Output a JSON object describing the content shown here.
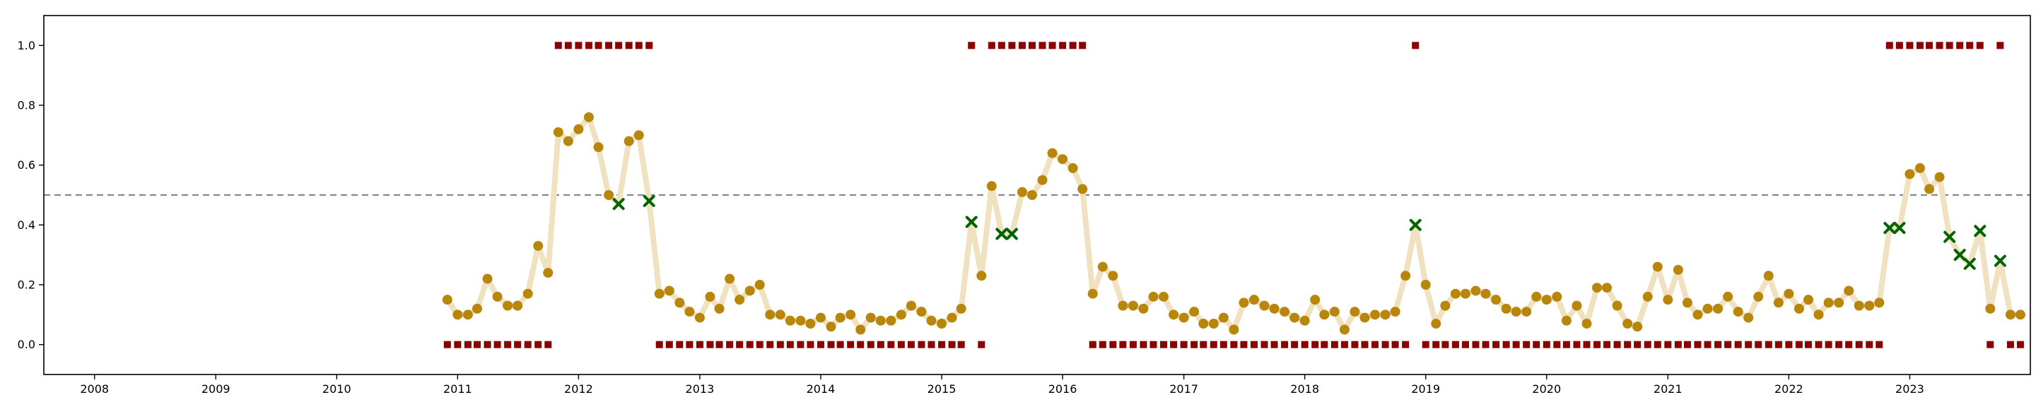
{
  "chart_data": {
    "type": "scatter",
    "title": "",
    "xlabel": "",
    "ylabel": "",
    "x_axis": {
      "type": "date",
      "range": [
        "2007-08-01",
        "2023-12-31"
      ],
      "tick_labels": [
        "2008",
        "2009",
        "2010",
        "2011",
        "2012",
        "2013",
        "2014",
        "2015",
        "2016",
        "2017",
        "2018",
        "2019",
        "2020",
        "2021",
        "2022",
        "2023"
      ]
    },
    "y_axis": {
      "range": [
        -0.1,
        1.1
      ],
      "ticks": [
        0.0,
        0.2,
        0.4,
        0.6,
        0.8,
        1.0
      ],
      "tick_labels": [
        "0.0",
        "0.2",
        "0.4",
        "0.6",
        "0.8",
        "1.0"
      ]
    },
    "grid": false,
    "legend": "none",
    "threshold": {
      "y": 0.5,
      "style": "dashed",
      "color": "#888888"
    },
    "colors": {
      "line": "#f0e2c0",
      "point": "#b8860b",
      "cross": "#006400",
      "label_marker": "#8b0000"
    },
    "series": [
      {
        "role": "probability",
        "start_month": "2010-12",
        "values": [
          0.15,
          0.1,
          0.1,
          0.12,
          0.22,
          0.16,
          0.13,
          0.13,
          0.17,
          0.33,
          0.24,
          0.71,
          0.68,
          0.72,
          0.76,
          0.66,
          0.5,
          0.47,
          0.68,
          0.7,
          0.48,
          0.17,
          0.18,
          0.14,
          0.11,
          0.09,
          0.16,
          0.12,
          0.22,
          0.15,
          0.18,
          0.2,
          0.1,
          0.1,
          0.08,
          0.08,
          0.07,
          0.09,
          0.06,
          0.09,
          0.1,
          0.05,
          0.09,
          0.08,
          0.08,
          0.1,
          0.13,
          0.11,
          0.08,
          0.07,
          0.09,
          0.12,
          0.41,
          0.23,
          0.53,
          0.37,
          0.37,
          0.51,
          0.5,
          0.55,
          0.64,
          0.62,
          0.59,
          0.52,
          0.17,
          0.26,
          0.23,
          0.13,
          0.13,
          0.12,
          0.16,
          0.16,
          0.1,
          0.09,
          0.11,
          0.07,
          0.07,
          0.09,
          0.05,
          0.14,
          0.15,
          0.13,
          0.12,
          0.11,
          0.09,
          0.08,
          0.15,
          0.1,
          0.11,
          0.05,
          0.11,
          0.09,
          0.1,
          0.1,
          0.11,
          0.23,
          0.4,
          0.2,
          0.07,
          0.13,
          0.17,
          0.17,
          0.18,
          0.17,
          0.15,
          0.12,
          0.11,
          0.11,
          0.16,
          0.15,
          0.16,
          0.08,
          0.13,
          0.07,
          0.19,
          0.19,
          0.13,
          0.07,
          0.06,
          0.16,
          0.26,
          0.15,
          0.25,
          0.14,
          0.1,
          0.12,
          0.12,
          0.16,
          0.11,
          0.09,
          0.16,
          0.23,
          0.14,
          0.17,
          0.12,
          0.15,
          0.1,
          0.14,
          0.14,
          0.18,
          0.13,
          0.13,
          0.14,
          0.39,
          0.39,
          0.57,
          0.59,
          0.52,
          0.56,
          0.36,
          0.3,
          0.27,
          0.38,
          0.12,
          0.28,
          0.1,
          0.1
        ]
      },
      {
        "role": "labels",
        "start_month": "2010-12",
        "values": [
          0,
          0,
          0,
          0,
          0,
          0,
          0,
          0,
          0,
          0,
          0,
          1,
          1,
          1,
          1,
          1,
          1,
          1,
          1,
          1,
          1,
          0,
          0,
          0,
          0,
          0,
          0,
          0,
          0,
          0,
          0,
          0,
          0,
          0,
          0,
          0,
          0,
          0,
          0,
          0,
          0,
          0,
          0,
          0,
          0,
          0,
          0,
          0,
          0,
          0,
          0,
          0,
          1,
          0,
          1,
          1,
          1,
          1,
          1,
          1,
          1,
          1,
          1,
          1,
          0,
          0,
          0,
          0,
          0,
          0,
          0,
          0,
          0,
          0,
          0,
          0,
          0,
          0,
          0,
          0,
          0,
          0,
          0,
          0,
          0,
          0,
          0,
          0,
          0,
          0,
          0,
          0,
          0,
          0,
          0,
          0,
          1,
          0,
          0,
          0,
          0,
          0,
          0,
          0,
          0,
          0,
          0,
          0,
          0,
          0,
          0,
          0,
          0,
          0,
          0,
          0,
          0,
          0,
          0,
          0,
          0,
          0,
          0,
          0,
          0,
          0,
          0,
          0,
          0,
          0,
          0,
          0,
          0,
          0,
          0,
          0,
          0,
          0,
          0,
          0,
          0,
          0,
          0,
          1,
          1,
          1,
          1,
          1,
          1,
          1,
          1,
          1,
          1,
          0,
          1,
          0,
          0
        ]
      }
    ]
  }
}
